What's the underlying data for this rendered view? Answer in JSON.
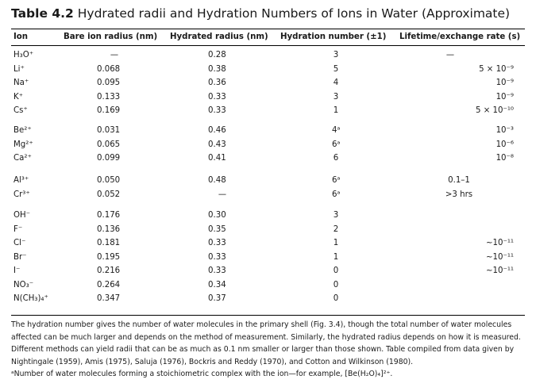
{
  "table": {
    "number": "Table 4.2",
    "title": "Hydrated radii and Hydration Numbers of Ions in Water (Approximate)",
    "columns": [
      "Ion",
      "Bare ion radius (nm)",
      "Hydrated radius (nm)",
      "Hydration number (±1)",
      "Lifetime/exchange rate (s)"
    ],
    "groups": [
      [
        {
          "ion": "H₃O⁺",
          "bare": "—",
          "hyd": "0.28",
          "num": "3",
          "life": "—"
        },
        {
          "ion": "Li⁺",
          "bare": "0.068",
          "hyd": "0.38",
          "num": "5",
          "life": "5 × 10⁻⁹"
        },
        {
          "ion": "Na⁺",
          "bare": "0.095",
          "hyd": "0.36",
          "num": "4",
          "life": "10⁻⁹"
        },
        {
          "ion": "K⁺",
          "bare": "0.133",
          "hyd": "0.33",
          "num": "3",
          "life": "10⁻⁹"
        },
        {
          "ion": "Cs⁺",
          "bare": "0.169",
          "hyd": "0.33",
          "num": "1",
          "life": "5 × 10⁻¹⁰"
        }
      ],
      [
        {
          "ion": "Be²⁺",
          "bare": "0.031",
          "hyd": "0.46",
          "num": "4ᵃ",
          "life": "10⁻³"
        },
        {
          "ion": "Mg²⁺",
          "bare": "0.065",
          "hyd": "0.43",
          "num": "6ᵃ",
          "life": "10⁻⁶"
        },
        {
          "ion": "Ca²⁺",
          "bare": "0.099",
          "hyd": "0.41",
          "num": "6",
          "life": "10⁻⁸"
        }
      ],
      [
        {
          "ion": "Al³⁺",
          "bare": "0.050",
          "hyd": "0.48",
          "num": "6ᵃ",
          "life": "0.1–1"
        },
        {
          "ion": "Cr³⁺",
          "bare": "0.052",
          "hyd": "—",
          "num": "6ᵃ",
          "life": ">3 hrs"
        }
      ],
      [
        {
          "ion": "OH⁻",
          "bare": "0.176",
          "hyd": "0.30",
          "num": "3",
          "life": ""
        },
        {
          "ion": "F⁻",
          "bare": "0.136",
          "hyd": "0.35",
          "num": "2",
          "life": ""
        },
        {
          "ion": "Cl⁻",
          "bare": "0.181",
          "hyd": "0.33",
          "num": "1",
          "life": "~10⁻¹¹"
        },
        {
          "ion": "Br⁻",
          "bare": "0.195",
          "hyd": "0.33",
          "num": "1",
          "life": "~10⁻¹¹"
        },
        {
          "ion": "I⁻",
          "bare": "0.216",
          "hyd": "0.33",
          "num": "0",
          "life": "~10⁻¹¹"
        },
        {
          "ion": "NO₃⁻",
          "bare": "0.264",
          "hyd": "0.34",
          "num": "0",
          "life": ""
        },
        {
          "ion": "N(CH₃)₄⁺",
          "bare": "0.347",
          "hyd": "0.37",
          "num": "0",
          "life": ""
        }
      ]
    ],
    "footnote_main": "The hydration number gives the number of water molecules in the primary shell (Fig. 3.4), though the total number of water molecules affected can be much larger and depends on the method of measurement. Similarly, the hydrated radius depends on how it is measured. Different methods can yield radii that can be as much as 0.1 nm smaller or larger than those shown. Table compiled from data given by Nightingale (1959), Amis (1975), Saluja (1976), Bockris and Reddy (1970), and Cotton and Wilkinson (1980).",
    "footnote_a": "ᵃNumber of water molecules forming a stoichiometric complex with the ion—for example, [Be(H₂O)₄]²⁺."
  }
}
